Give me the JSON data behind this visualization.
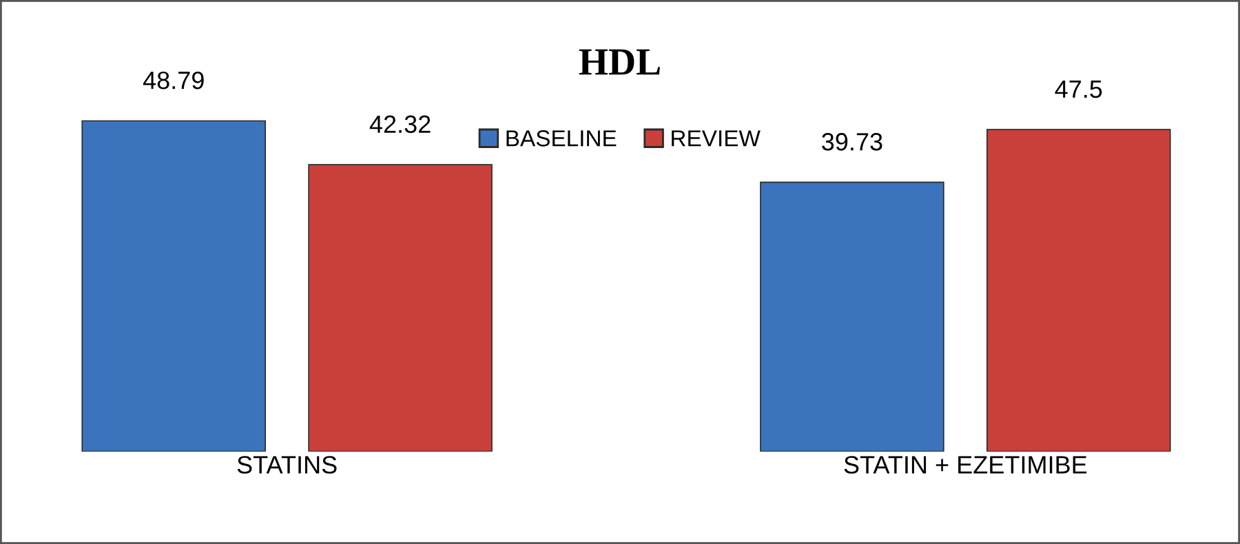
{
  "chart_data": {
    "type": "bar",
    "title": "HDL",
    "categories": [
      "STATINS",
      "STATIN + EZETIMIBE"
    ],
    "series": [
      {
        "name": "BASELINE",
        "color": "#3b74bd",
        "values": [
          48.79,
          39.73
        ]
      },
      {
        "name": "REVIEW",
        "color": "#c9403b",
        "values": [
          42.32,
          47.5
        ]
      }
    ],
    "data_labels": true,
    "legend": "top",
    "grid": false,
    "tick_labels": "x"
  }
}
